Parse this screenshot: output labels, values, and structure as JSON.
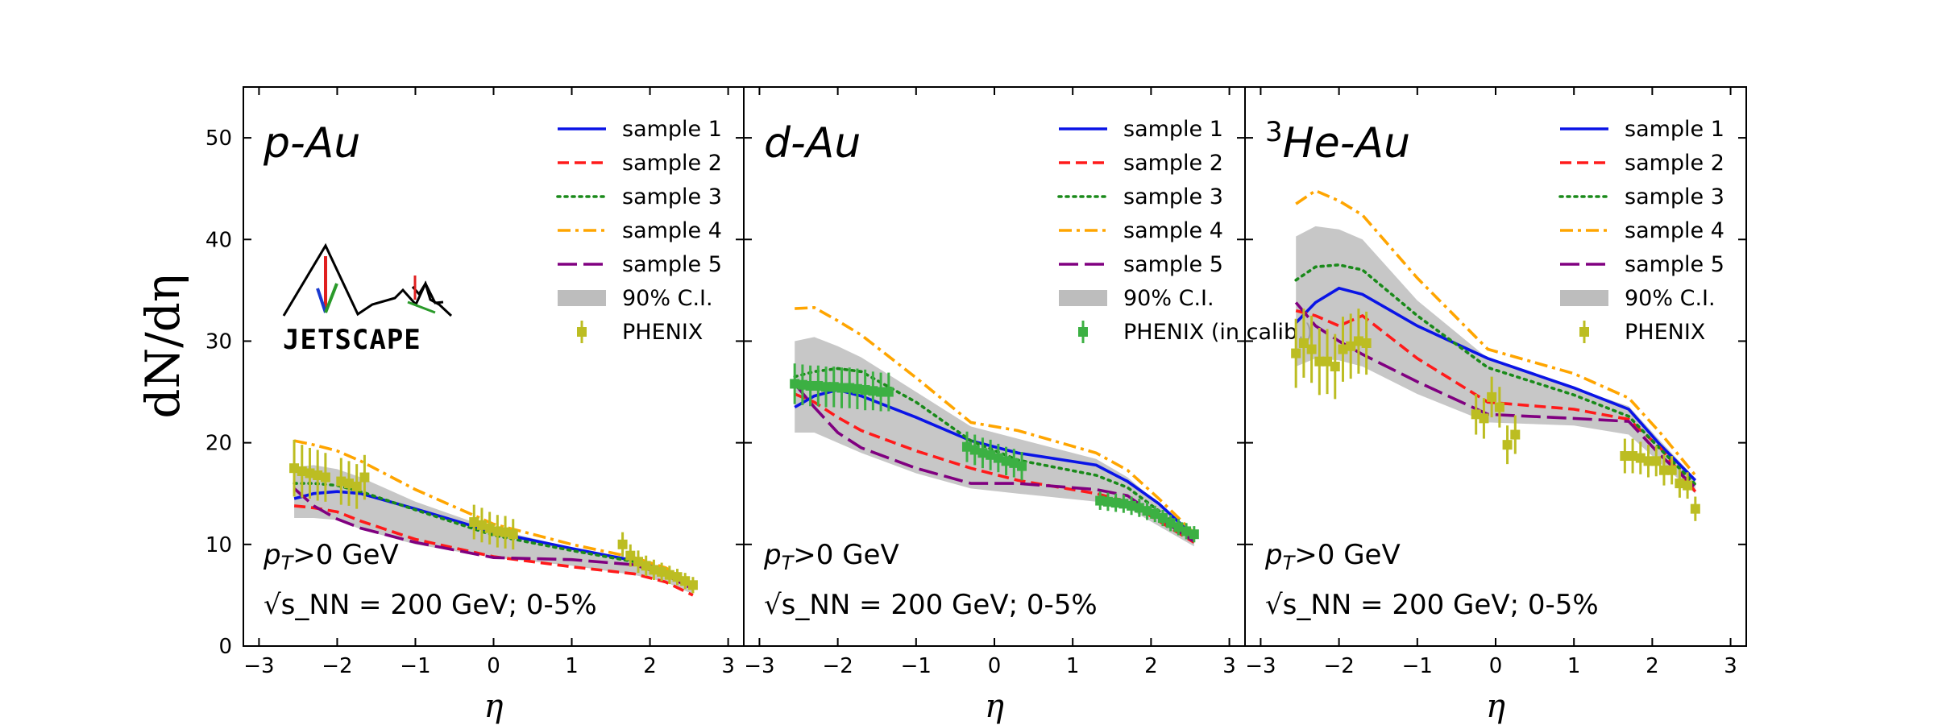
{
  "figure": {
    "ylabel": "dN/dη",
    "xlabel": "η",
    "logo_text": "JETSCAPE"
  },
  "colors": {
    "sample 1": "#0a14e6",
    "sample 2": "#ff1a1a",
    "sample 3": "#1a8a1a",
    "sample 4": "#ffa500",
    "sample 5": "#800080",
    "band": "#bdbdbd",
    "phenix": "#bcbd22",
    "phenix_calib": "#3cb043"
  },
  "chart_data": [
    {
      "type": "line",
      "title": "p-Au",
      "xlim": [
        -3.2,
        3.2
      ],
      "ylim": [
        0,
        55
      ],
      "xticks": [
        -3,
        -2,
        -1,
        0,
        1,
        2,
        3
      ],
      "yticks": [
        0,
        10,
        20,
        30,
        40,
        50
      ],
      "xlabel": "η",
      "ylabel": "dN/dη",
      "conditions": [
        "p_T>0 GeV",
        "√s_NN = 200 GeV;  0-5%"
      ],
      "legend": [
        "sample 1",
        "sample 2",
        "sample 3",
        "sample 4",
        "sample 5",
        "90% C.I.",
        "PHENIX"
      ],
      "show_logo": true,
      "x": [
        -2.55,
        -2.3,
        -2.0,
        -1.7,
        -1.0,
        0.0,
        1.0,
        1.8,
        2.2,
        2.55
      ],
      "series": [
        {
          "name": "sample 1",
          "style": "solid",
          "values": [
            14.5,
            15.0,
            15.2,
            15.0,
            13.5,
            11.2,
            9.6,
            8.4,
            7.5,
            5.9
          ]
        },
        {
          "name": "sample 2",
          "style": "dashed",
          "values": [
            13.8,
            13.6,
            13.2,
            12.3,
            10.5,
            8.8,
            7.8,
            7.1,
            6.3,
            5.0
          ]
        },
        {
          "name": "sample 3",
          "style": "dotted",
          "values": [
            16.0,
            16.0,
            15.8,
            15.2,
            13.4,
            10.9,
            9.4,
            8.3,
            7.4,
            5.8
          ]
        },
        {
          "name": "sample 4",
          "style": "dashdot",
          "values": [
            20.2,
            19.8,
            19.2,
            18.2,
            15.4,
            12.0,
            10.0,
            8.7,
            7.7,
            6.1
          ]
        },
        {
          "name": "sample 5",
          "style": "longdash",
          "values": [
            15.5,
            13.8,
            12.5,
            11.6,
            10.2,
            8.7,
            8.5,
            8.0,
            7.0,
            5.6
          ]
        }
      ],
      "band": {
        "name": "90% C.I.",
        "lower": [
          12.6,
          12.6,
          12.4,
          11.5,
          10.0,
          8.7,
          7.9,
          7.0,
          6.3,
          5.1
        ],
        "upper": [
          17.6,
          17.8,
          17.4,
          16.6,
          14.2,
          11.5,
          9.7,
          8.5,
          7.6,
          6.0
        ]
      },
      "data_points": {
        "name": "PHENIX",
        "x": [
          -2.55,
          -2.45,
          -2.35,
          -2.25,
          -2.15,
          -1.95,
          -1.85,
          -1.75,
          -1.65,
          -0.25,
          -0.15,
          -0.05,
          0.05,
          0.15,
          0.25,
          1.65,
          1.75,
          1.85,
          1.95,
          2.05,
          2.15,
          2.25,
          2.35,
          2.45,
          2.55
        ],
        "y": [
          17.5,
          17.2,
          17.0,
          16.8,
          16.6,
          16.2,
          16.0,
          15.7,
          16.6,
          12.2,
          11.9,
          11.6,
          11.3,
          11.2,
          11.0,
          10.0,
          8.9,
          8.3,
          7.9,
          7.5,
          7.3,
          7.0,
          6.8,
          6.4,
          6.0
        ],
        "err": [
          2.8,
          2.6,
          2.5,
          2.5,
          2.4,
          2.3,
          2.2,
          2.2,
          2.2,
          1.7,
          1.7,
          1.6,
          1.6,
          1.6,
          1.5,
          1.2,
          1.1,
          1.1,
          1.0,
          1.0,
          0.9,
          0.9,
          0.8,
          0.8,
          0.8
        ]
      }
    },
    {
      "type": "line",
      "title": "d-Au",
      "xlim": [
        -3.2,
        3.2
      ],
      "ylim": [
        0,
        55
      ],
      "xticks": [
        -3,
        -2,
        -1,
        0,
        1,
        2,
        3
      ],
      "yticks": [
        0,
        10,
        20,
        30,
        40,
        50
      ],
      "xlabel": "η",
      "conditions": [
        "p_T>0 GeV",
        "√s_NN = 200 GeV;  0-5%"
      ],
      "legend": [
        "sample 1",
        "sample 2",
        "sample 3",
        "sample 4",
        "sample 5",
        "90% C.I.",
        "PHENIX (in calib.)"
      ],
      "show_logo": false,
      "x": [
        -2.55,
        -2.3,
        -2.0,
        -1.7,
        -1.0,
        -0.3,
        0.3,
        1.3,
        1.7,
        2.1,
        2.55
      ],
      "series": [
        {
          "name": "sample 1",
          "style": "solid",
          "values": [
            23.5,
            24.6,
            25.2,
            24.6,
            22.5,
            20.2,
            19.0,
            17.8,
            16.2,
            14.0,
            10.8
          ]
        },
        {
          "name": "sample 2",
          "style": "dashed",
          "values": [
            24.8,
            24.0,
            22.5,
            21.2,
            19.2,
            17.5,
            16.3,
            15.0,
            14.2,
            12.3,
            10.2
          ]
        },
        {
          "name": "sample 3",
          "style": "dotted",
          "values": [
            26.5,
            27.0,
            27.3,
            27.0,
            24.0,
            20.2,
            18.3,
            16.8,
            15.6,
            13.3,
            10.5
          ]
        },
        {
          "name": "sample 4",
          "style": "dashdot",
          "values": [
            33.2,
            33.3,
            32.0,
            30.6,
            26.4,
            22.0,
            21.2,
            19.0,
            17.3,
            14.5,
            11.1
          ]
        },
        {
          "name": "sample 5",
          "style": "longdash",
          "values": [
            25.8,
            23.5,
            21.0,
            19.5,
            17.5,
            16.0,
            16.0,
            15.4,
            14.8,
            12.6,
            10.3
          ]
        }
      ],
      "band": {
        "name": "90% C.I.",
        "lower": [
          21.0,
          21.0,
          20.0,
          19.0,
          17.0,
          15.5,
          15.0,
          14.2,
          13.6,
          11.8,
          9.8
        ],
        "upper": [
          30.0,
          30.4,
          29.5,
          28.4,
          25.0,
          21.6,
          20.4,
          18.4,
          16.6,
          14.0,
          11.2
        ]
      },
      "data_points": {
        "name": "PHENIX (in calib.)",
        "x": [
          -2.55,
          -2.45,
          -2.35,
          -2.25,
          -2.15,
          -2.05,
          -1.95,
          -1.85,
          -1.75,
          -1.65,
          -1.55,
          -1.45,
          -1.35,
          -0.35,
          -0.25,
          -0.15,
          -0.05,
          0.05,
          0.15,
          0.25,
          0.35,
          1.35,
          1.45,
          1.55,
          1.65,
          1.75,
          1.85,
          1.95,
          2.05,
          2.15,
          2.25,
          2.35,
          2.45,
          2.55
        ],
        "y": [
          25.8,
          25.7,
          25.6,
          25.6,
          25.5,
          25.5,
          25.4,
          25.4,
          25.3,
          25.2,
          25.1,
          25.0,
          25.0,
          19.6,
          19.3,
          19.0,
          18.8,
          18.5,
          18.2,
          18.0,
          17.7,
          14.3,
          14.2,
          14.1,
          14.0,
          13.8,
          13.6,
          13.3,
          13.0,
          12.6,
          12.1,
          11.7,
          11.3,
          11.0
        ],
        "err": [
          2.0,
          2.0,
          2.0,
          2.0,
          2.0,
          2.0,
          2.0,
          2.0,
          2.0,
          2.0,
          1.9,
          1.9,
          1.9,
          1.5,
          1.5,
          1.5,
          1.5,
          1.4,
          1.4,
          1.4,
          1.4,
          0.9,
          0.9,
          0.9,
          0.9,
          0.9,
          0.9,
          0.9,
          0.8,
          0.8,
          0.8,
          0.8,
          0.8,
          0.8
        ]
      }
    },
    {
      "type": "line",
      "title": "He-Au",
      "title_superscript": "3",
      "xlim": [
        -3.2,
        3.2
      ],
      "ylim": [
        0,
        55
      ],
      "xticks": [
        -3,
        -2,
        -1,
        0,
        1,
        2,
        3
      ],
      "yticks": [
        0,
        10,
        20,
        30,
        40,
        50
      ],
      "xlabel": "η",
      "conditions": [
        "p_T>0 GeV",
        "√s_NN = 200 GeV;  0-5%"
      ],
      "legend": [
        "sample 1",
        "sample 2",
        "sample 3",
        "sample 4",
        "sample 5",
        "90% C.I.",
        "PHENIX"
      ],
      "show_logo": false,
      "x": [
        -2.55,
        -2.3,
        -2.0,
        -1.7,
        -1.0,
        -0.1,
        1.0,
        1.7,
        2.1,
        2.55
      ],
      "series": [
        {
          "name": "sample 1",
          "style": "solid",
          "values": [
            31.8,
            33.8,
            35.2,
            34.6,
            31.5,
            28.3,
            25.4,
            23.3,
            19.8,
            16.3
          ]
        },
        {
          "name": "sample 2",
          "style": "dashed",
          "values": [
            33.0,
            32.5,
            31.5,
            32.5,
            28.3,
            24.0,
            23.3,
            22.3,
            19.5,
            15.2
          ]
        },
        {
          "name": "sample 3",
          "style": "dotted",
          "values": [
            36.0,
            37.3,
            37.5,
            37.0,
            32.5,
            27.4,
            24.7,
            22.6,
            19.4,
            15.9
          ]
        },
        {
          "name": "sample 4",
          "style": "dashdot",
          "values": [
            43.5,
            44.8,
            43.8,
            42.4,
            36.2,
            29.2,
            26.8,
            24.4,
            21.0,
            16.8
          ]
        },
        {
          "name": "sample 5",
          "style": "longdash",
          "values": [
            33.8,
            31.5,
            30.0,
            28.7,
            26.0,
            22.8,
            22.4,
            22.1,
            18.8,
            15.6
          ]
        }
      ],
      "band": {
        "name": "90% C.I.",
        "lower": [
          27.5,
          28.3,
          28.1,
          27.5,
          24.8,
          22.0,
          21.7,
          20.8,
          18.0,
          15.0
        ],
        "upper": [
          40.3,
          41.3,
          41.0,
          40.0,
          34.0,
          28.3,
          25.4,
          23.6,
          20.2,
          16.5
        ]
      },
      "data_points": {
        "name": "PHENIX",
        "x": [
          -2.55,
          -2.45,
          -2.35,
          -2.25,
          -2.15,
          -2.05,
          -1.95,
          -1.85,
          -1.75,
          -1.65,
          -0.25,
          -0.15,
          -0.05,
          0.05,
          0.15,
          0.25,
          1.65,
          1.75,
          1.85,
          1.95,
          2.05,
          2.15,
          2.25,
          2.35,
          2.45,
          2.55
        ],
        "y": [
          28.8,
          29.8,
          29.2,
          28.0,
          28.0,
          27.5,
          29.2,
          29.5,
          30.0,
          29.8,
          22.8,
          22.4,
          24.5,
          23.5,
          19.8,
          20.8,
          18.7,
          18.7,
          18.5,
          18.2,
          18.2,
          17.3,
          17.3,
          16.0,
          15.8,
          13.5
        ],
        "err": [
          3.4,
          3.4,
          3.3,
          3.3,
          3.2,
          3.2,
          3.2,
          3.2,
          3.2,
          3.1,
          2.0,
          2.0,
          2.0,
          2.0,
          1.9,
          1.9,
          1.7,
          1.7,
          1.6,
          1.6,
          1.5,
          1.5,
          1.4,
          1.4,
          1.3,
          1.2
        ]
      }
    }
  ]
}
